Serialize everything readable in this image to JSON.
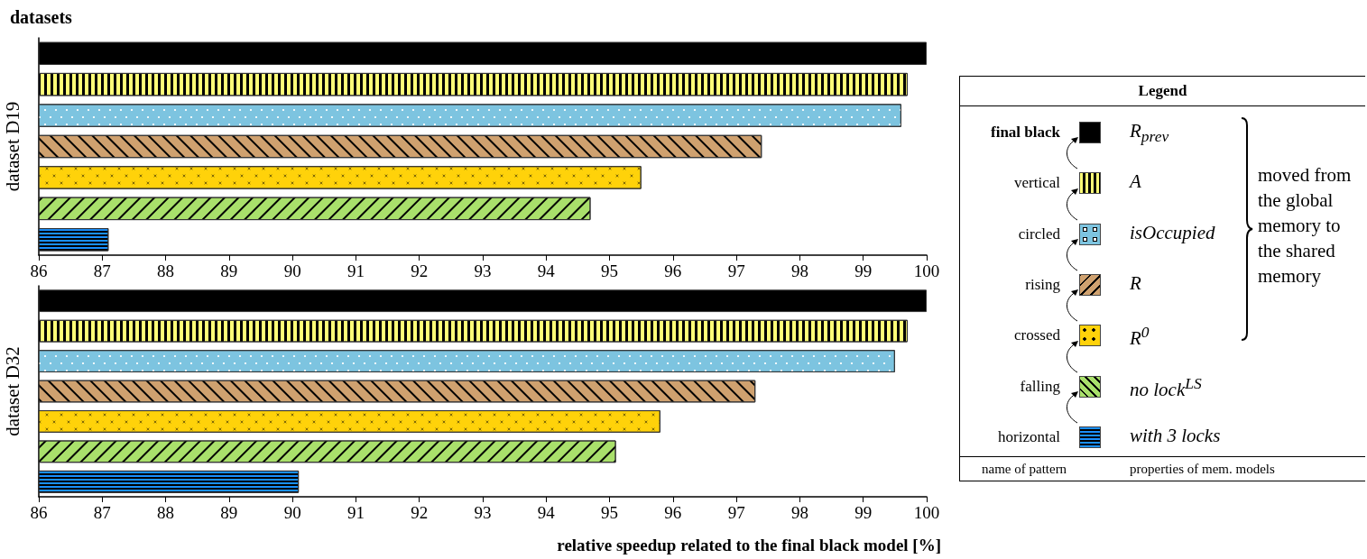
{
  "chart_data": [
    {
      "type": "bar",
      "orientation": "horizontal",
      "title": "datasets",
      "ylabel": "dataset D19",
      "legend": "right",
      "legend_title": "Legend",
      "categories": [
        null,
        null,
        null,
        null,
        null,
        null,
        null
      ],
      "xlim": [
        86,
        100
      ],
      "xticks": [
        86,
        87,
        88,
        89,
        90,
        91,
        92,
        93,
        94,
        95,
        96,
        97,
        98,
        99,
        100
      ],
      "series": [
        {
          "name": "R$_{prev}$",
          "color": "#000000",
          "values": [
            100,
            null,
            null,
            null,
            null,
            null,
            null
          ]
        },
        {
          "name": "A",
          "color": "#ffff77",
          "values": [
            null,
            99.7,
            null,
            null,
            null,
            null,
            null
          ]
        },
        {
          "name": "isOccupied",
          "color": "#7dc4e0",
          "values": [
            null,
            null,
            99.6,
            null,
            null,
            null,
            null
          ]
        },
        {
          "name": "R",
          "color": "#cfa16f",
          "values": [
            null,
            null,
            null,
            97.4,
            null,
            null,
            null
          ]
        },
        {
          "name": "R$^{0}$",
          "color": "#ffd20a",
          "values": [
            null,
            null,
            null,
            null,
            95.5,
            null,
            null
          ]
        },
        {
          "name": "no lock$^{LS}$",
          "color": "#a9e06b",
          "values": [
            null,
            null,
            null,
            null,
            null,
            94.7,
            null
          ]
        },
        {
          "name": "with 3 locks",
          "color": "#1a90ff",
          "values": [
            null,
            null,
            null,
            null,
            null,
            null,
            87.1
          ]
        }
      ],
      "annotations": [
        "final black",
        "vertical",
        "circled",
        "rising",
        "crossed",
        "falling",
        "horizontal",
        "moved from the global memory to the shared memory",
        "name of pattern",
        "properties of mem. models"
      ]
    },
    {
      "type": "bar",
      "orientation": "horizontal",
      "ylabel": "dataset D32",
      "xlabel": "relative speedup related to the final black model [%]",
      "categories": [
        null,
        null,
        null,
        null,
        null,
        null,
        null
      ],
      "xlim": [
        86,
        100
      ],
      "xticks": [
        86,
        87,
        88,
        89,
        90,
        91,
        92,
        93,
        94,
        95,
        96,
        97,
        98,
        99,
        100
      ],
      "series": [
        {
          "color": "#000000",
          "values": [
            100,
            null,
            null,
            null,
            null,
            null,
            null
          ]
        },
        {
          "color": "#ffff77",
          "values": [
            null,
            99.7,
            null,
            null,
            null,
            null,
            null
          ]
        },
        {
          "color": "#7dc4e0",
          "values": [
            null,
            null,
            99.5,
            null,
            null,
            null,
            null
          ]
        },
        {
          "color": "#cfa16f",
          "values": [
            null,
            null,
            null,
            97.3,
            null,
            null,
            null
          ]
        },
        {
          "color": "#ffd20a",
          "values": [
            null,
            null,
            null,
            null,
            95.8,
            null,
            null
          ]
        },
        {
          "color": "#a9e06b",
          "values": [
            null,
            null,
            null,
            null,
            null,
            95.1,
            null
          ]
        },
        {
          "color": "#1a90ff",
          "values": [
            null,
            null,
            null,
            null,
            null,
            null,
            90.1
          ]
        }
      ]
    }
  ]
}
